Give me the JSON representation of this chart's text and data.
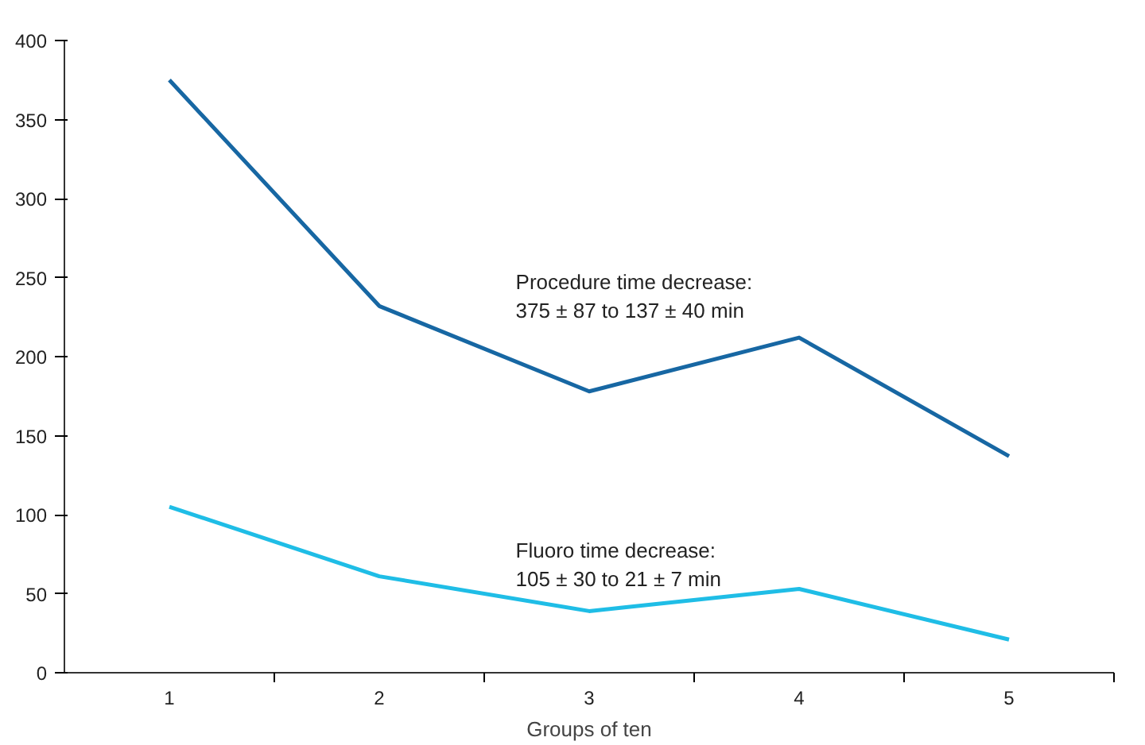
{
  "chart_data": {
    "type": "line",
    "xlabel": "Groups of ten",
    "categories": [
      "1",
      "2",
      "3",
      "4",
      "5"
    ],
    "series": [
      {
        "color": "#1767a3",
        "values": [
          375,
          232,
          178,
          212,
          137
        ]
      },
      {
        "color": "#1fbde6",
        "values": [
          105,
          61,
          39,
          53,
          21
        ]
      }
    ],
    "ylim": [
      0,
      400
    ],
    "yticks": [
      0,
      50,
      100,
      150,
      200,
      250,
      300,
      350,
      400
    ],
    "grid": false,
    "marker": "none",
    "line_style": "solid",
    "annotations": [
      "Procedure time decrease:\n375 ± 87 to 137 ± 40 min",
      "Fluoro time decrease:\n105 ± 30 to 21 ± 7 min"
    ]
  }
}
